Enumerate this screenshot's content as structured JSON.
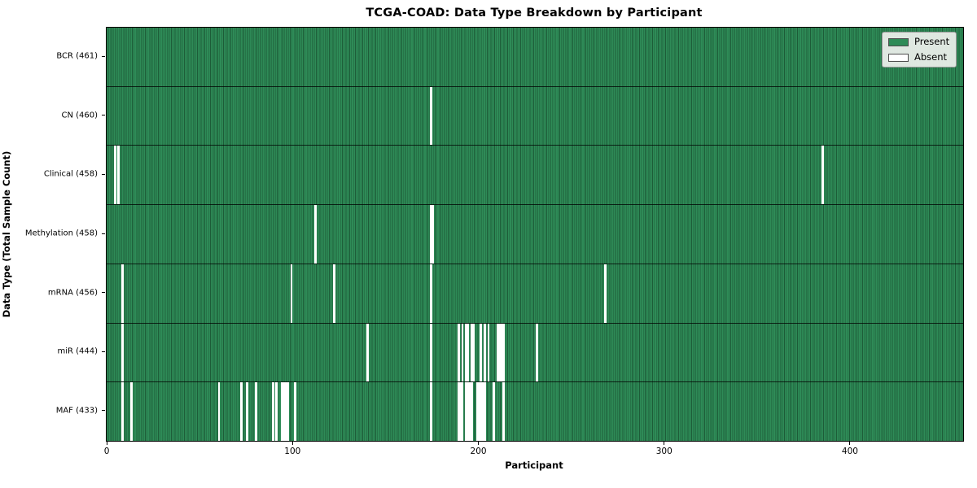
{
  "title": "TCGA-COAD: Data Type Breakdown by Participant",
  "legend": {
    "present_label": "Present",
    "absent_label": "Absent"
  },
  "chart_data": {
    "type": "heatmap",
    "title": "TCGA-COAD: Data Type Breakdown by Participant",
    "xlabel": "Participant",
    "ylabel": "Data Type (Total Sample Count)",
    "x_ticks": [
      0,
      100,
      200,
      300,
      400
    ],
    "xlim": [
      0,
      461
    ],
    "n_participants": 461,
    "grid": false,
    "legend_position": "upper right",
    "legend_entries": [
      {
        "label": "Present",
        "color": "#2e8b57"
      },
      {
        "label": "Absent",
        "color": "#ffffff"
      }
    ],
    "colors": {
      "present": "#2e8b57",
      "present_edge": "#1d5c38",
      "absent": "#ffffff",
      "row_divider": "#000000"
    },
    "rows": [
      {
        "label": "BCR (461)",
        "data_type": "BCR",
        "present_count": 461,
        "absent_participants": []
      },
      {
        "label": "CN (460)",
        "data_type": "CN",
        "present_count": 460,
        "absent_participants": [
          174
        ]
      },
      {
        "label": "Clinical (458)",
        "data_type": "Clinical",
        "present_count": 458,
        "absent_participants": [
          4,
          6,
          385
        ]
      },
      {
        "label": "Methylation (458)",
        "data_type": "Methylation",
        "present_count": 458,
        "absent_participants": [
          112,
          174,
          175
        ]
      },
      {
        "label": "mRNA (456)",
        "data_type": "mRNA",
        "present_count": 456,
        "absent_participants": [
          8,
          99,
          122,
          174,
          268
        ]
      },
      {
        "label": "miR (444)",
        "data_type": "miR",
        "present_count": 444,
        "absent_participants": [
          8,
          140,
          174,
          189,
          191,
          193,
          194,
          196,
          197,
          201,
          203,
          205,
          210,
          211,
          212,
          213,
          231
        ]
      },
      {
        "label": "MAF (433)",
        "data_type": "MAF",
        "present_count": 433,
        "absent_participants": [
          8,
          13,
          60,
          72,
          75,
          80,
          89,
          91,
          94,
          95,
          96,
          97,
          101,
          174,
          189,
          190,
          191,
          193,
          194,
          195,
          196,
          199,
          200,
          201,
          202,
          203,
          208,
          213
        ]
      }
    ]
  }
}
